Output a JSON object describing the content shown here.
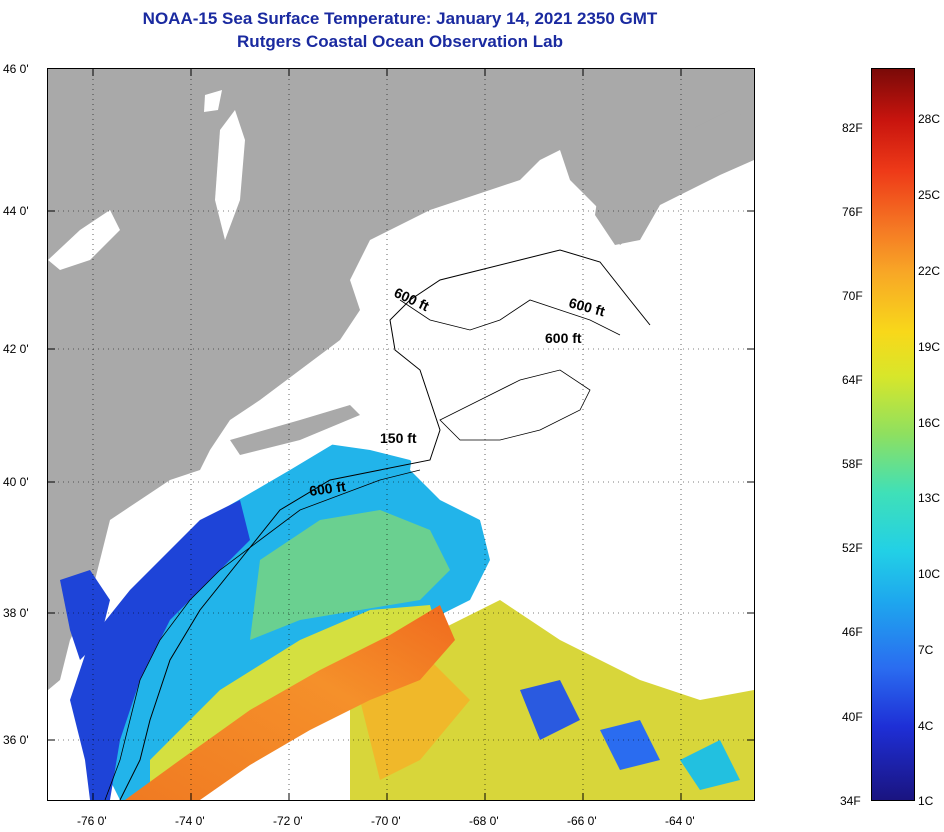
{
  "title": {
    "line1": "NOAA-15 Sea Surface Temperature:  January 14, 2021 2350 GMT",
    "line2": "Rutgers Coastal Ocean Observation Lab"
  },
  "map": {
    "lon_range": [
      -77.0,
      -63.0
    ],
    "lat_range": [
      35.0,
      46.0
    ],
    "lon_ticks": [
      "-76 0'",
      "-74 0'",
      "-72 0'",
      "-70 0'",
      "-68 0'",
      "-66 0'",
      "-64 0'"
    ],
    "lat_ticks": [
      "46 0'",
      "44 0'",
      "42 0'",
      "40 0'",
      "38 0'",
      "36 0'"
    ],
    "grid": "dotted",
    "colors": {
      "land": "#a9a9a9",
      "cloud": "#ffffff",
      "contour": "#000000",
      "title": "#1a2aa0"
    },
    "contour_labels": [
      "600 ft",
      "600 ft",
      "600 ft",
      "150 ft",
      "600 ft"
    ]
  },
  "colorbar": {
    "fahrenheit": [
      "82F",
      "76F",
      "70F",
      "64F",
      "58F",
      "52F",
      "46F",
      "40F",
      "34F"
    ],
    "celsius": [
      "28C",
      "25C",
      "22C",
      "19C",
      "16C",
      "13C",
      "10C",
      "7C",
      "4C",
      "1C"
    ]
  }
}
